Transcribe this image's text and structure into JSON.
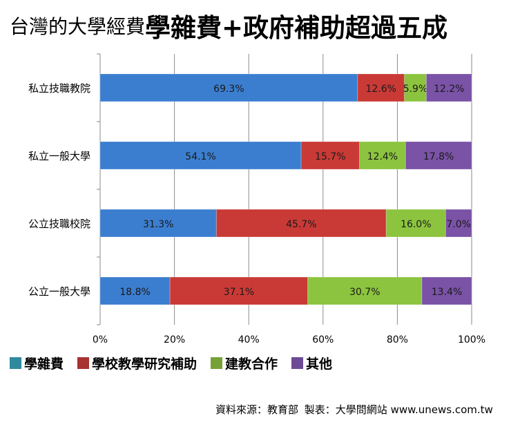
{
  "title": {
    "prefix": "台灣的大學經費",
    "emphasis": "學雜費+政府補助超過五成"
  },
  "colors": {
    "學雜費": "#3b7ed0",
    "學校教學研究補助": "#c93a36",
    "建教合作": "#8cc43f",
    "其他": "#7a52a6",
    "legend_學雜費": "#2e8a9c",
    "legend_學校教學研究補助": "#a83230",
    "legend_建教合作": "#77a136",
    "legend_其他": "#6c4a95"
  },
  "chart_data": {
    "type": "bar",
    "orientation": "horizontal",
    "stacked": "percent",
    "categories": [
      "私立技職教院",
      "私立一般大學",
      "公立技職校院",
      "公立一般大學"
    ],
    "series": [
      {
        "name": "學雜費",
        "values": [
          69.3,
          54.1,
          31.3,
          18.8
        ],
        "labels": [
          "69.3%",
          "54.1%",
          "31.3%",
          "18.8%"
        ]
      },
      {
        "name": "學校教學研究補助",
        "values": [
          12.6,
          15.7,
          45.7,
          37.1
        ],
        "labels": [
          "12.6%",
          "15.7%",
          "45.7%",
          "37.1%"
        ]
      },
      {
        "name": "建教合作",
        "values": [
          5.9,
          12.4,
          16.0,
          30.7
        ],
        "labels": [
          "5.9%",
          "12.4%",
          "16.0%",
          "30.7%"
        ]
      },
      {
        "name": "其他",
        "values": [
          12.2,
          17.8,
          7.0,
          13.4
        ],
        "labels": [
          "12.2%",
          "17.8%",
          "7.0%",
          "13.4%"
        ]
      }
    ],
    "x_ticks": [
      "0%",
      "20%",
      "40%",
      "60%",
      "80%",
      "100%"
    ],
    "xlim": [
      0,
      100
    ],
    "grid": true,
    "legend_position": "bottom-left"
  },
  "legend": [
    {
      "label": "學雜費"
    },
    {
      "label": "學校教學研究補助"
    },
    {
      "label": "建教合作"
    },
    {
      "label": "其他"
    }
  ],
  "source": {
    "text": "資料來源：教育部",
    "maker": "製表：大學問網站 www.unews.com.tw"
  }
}
